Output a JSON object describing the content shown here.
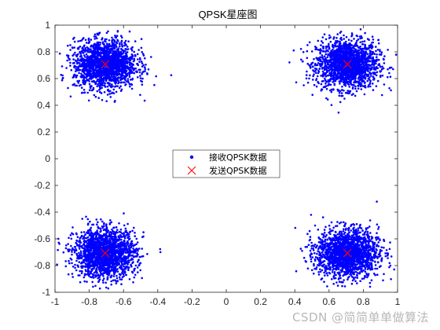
{
  "chart_data": {
    "type": "scatter",
    "title": "QPSK星座图",
    "xlabel": "",
    "ylabel": "",
    "xlim": [
      -1,
      1
    ],
    "ylim": [
      -1,
      1
    ],
    "xticks": [
      -1,
      -0.8,
      -0.6,
      -0.4,
      -0.2,
      0,
      0.2,
      0.4,
      0.6,
      0.8,
      1
    ],
    "yticks": [
      -1,
      -0.8,
      -0.6,
      -0.4,
      -0.2,
      0,
      0.2,
      0.4,
      0.6,
      0.8,
      1
    ],
    "xtick_labels": [
      "-1",
      "-0.8",
      "-0.6",
      "-0.4",
      "-0.2",
      "0",
      "0.2",
      "0.4",
      "0.6",
      "0.8",
      "1"
    ],
    "ytick_labels": [
      "-1",
      "-0.8",
      "-0.6",
      "-0.4",
      "-0.2",
      "0",
      "0.2",
      "0.4",
      "0.6",
      "0.8",
      "1"
    ],
    "grid": false,
    "legend_position": "center",
    "series": [
      {
        "name": "接收QPSK数据",
        "marker": "dot",
        "color": "#0000ff",
        "clusters": [
          {
            "center": [
              0.707,
              0.707
            ],
            "spread": 0.09
          },
          {
            "center": [
              -0.707,
              0.707
            ],
            "spread": 0.09
          },
          {
            "center": [
              -0.707,
              -0.707
            ],
            "spread": 0.09
          },
          {
            "center": [
              0.707,
              -0.707
            ],
            "spread": 0.09
          }
        ]
      },
      {
        "name": "发送QPSK数据",
        "marker": "x",
        "color": "#ff0000",
        "points": [
          [
            0.707,
            0.707
          ],
          [
            -0.707,
            0.707
          ],
          [
            -0.707,
            -0.707
          ],
          [
            0.707,
            -0.707
          ]
        ]
      }
    ]
  },
  "watermark": "CSDN @简简单单做算法"
}
